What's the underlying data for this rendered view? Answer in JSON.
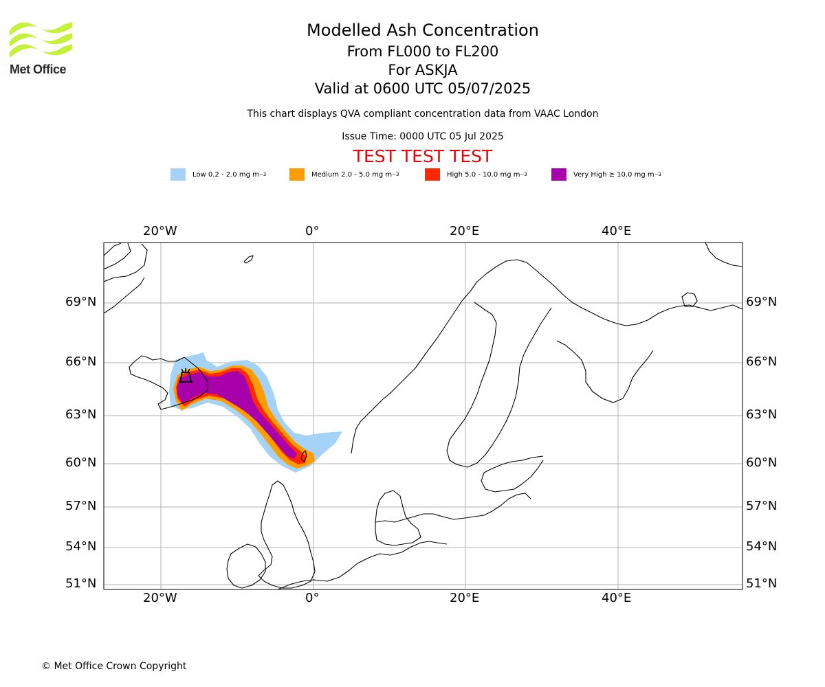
{
  "logo": {
    "name": "Met Office"
  },
  "titles": {
    "main": "Modelled Ash Concentration",
    "levels": "From FL000 to FL200",
    "volcano": "For ASKJA",
    "valid": "Valid at 0600 UTC 05/07/2025"
  },
  "subtitle": "This chart displays QVA compliant concentration data from VAAC London",
  "issue_time": "Issue Time: 0000 UTC 05 Jul 2025",
  "test_banner": "TEST TEST TEST",
  "legend": [
    {
      "label": "Low 0.2 - 2.0 mg m",
      "unit_exp": "−3",
      "color": "#a5d3f8"
    },
    {
      "label": "Medium 2.0 - 5.0 mg m",
      "unit_exp": "−3",
      "color": "#ff9d00"
    },
    {
      "label": "High 5.0 - 10.0 mg m",
      "unit_exp": "−3",
      "color": "#ff2800"
    },
    {
      "label": "Very High  ≥  10.0 mg m",
      "unit_exp": "−3",
      "color": "#a800aa"
    }
  ],
  "map": {
    "longitude_ticks": [
      "20°W",
      "0°",
      "20°E",
      "40°E"
    ],
    "latitude_ticks": [
      "69°N",
      "66°N",
      "63°N",
      "60°N",
      "57°N",
      "54°N",
      "51°N"
    ],
    "volcano_symbol": "volcano-icon",
    "land_color": "#ffffff",
    "coast_color": "#000000",
    "grid_color": "#b0b0b0"
  },
  "copyright": "© Met Office Crown Copyright"
}
